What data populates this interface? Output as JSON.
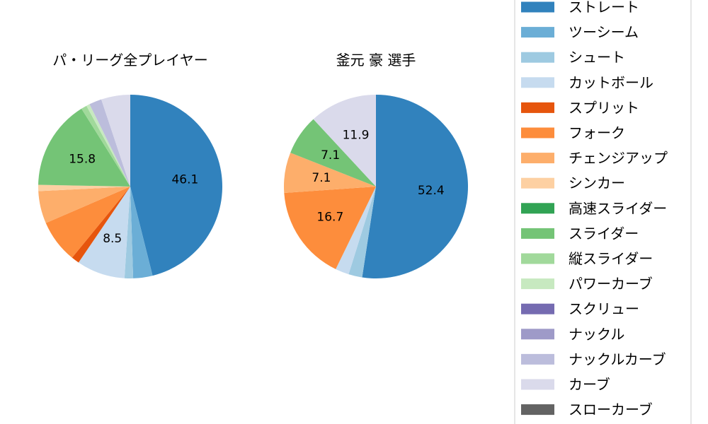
{
  "chart_data": [
    {
      "type": "pie",
      "title": "パ・リーグ全プレイヤー",
      "slices": [
        {
          "label": "ストレート",
          "value": 46.1,
          "color": "#3182bd",
          "show_label": true
        },
        {
          "label": "ツーシーム",
          "value": 3.4,
          "color": "#6baed6",
          "show_label": false
        },
        {
          "label": "シュート",
          "value": 1.5,
          "color": "#9ecae1",
          "show_label": false
        },
        {
          "label": "カットボール",
          "value": 8.5,
          "color": "#c6dbef",
          "show_label": true
        },
        {
          "label": "スプリット",
          "value": 1.4,
          "color": "#e6550d",
          "show_label": false
        },
        {
          "label": "フォーク",
          "value": 7.6,
          "color": "#fd8d3c",
          "show_label": false
        },
        {
          "label": "チェンジアップ",
          "value": 5.7,
          "color": "#fdae6b",
          "show_label": false
        },
        {
          "label": "シンカー",
          "value": 1.1,
          "color": "#fdd0a2",
          "show_label": false
        },
        {
          "label": "スライダー",
          "value": 15.8,
          "color": "#74c476",
          "show_label": true
        },
        {
          "label": "縦スライダー",
          "value": 1.0,
          "color": "#a1d99b",
          "show_label": false
        },
        {
          "label": "パワーカーブ",
          "value": 0.6,
          "color": "#c7e9c0",
          "show_label": false
        },
        {
          "label": "ナックルカーブ",
          "value": 2.2,
          "color": "#bcbddc",
          "show_label": false
        },
        {
          "label": "カーブ",
          "value": 5.1,
          "color": "#dadaeb",
          "show_label": false
        }
      ]
    },
    {
      "type": "pie",
      "title": "釜元 豪  選手",
      "slices": [
        {
          "label": "ストレート",
          "value": 52.4,
          "color": "#3182bd",
          "show_label": true
        },
        {
          "label": "シュート",
          "value": 2.4,
          "color": "#9ecae1",
          "show_label": false
        },
        {
          "label": "カットボール",
          "value": 2.4,
          "color": "#c6dbef",
          "show_label": false
        },
        {
          "label": "フォーク",
          "value": 16.7,
          "color": "#fd8d3c",
          "show_label": true
        },
        {
          "label": "チェンジアップ",
          "value": 7.1,
          "color": "#fdae6b",
          "show_label": true
        },
        {
          "label": "スライダー",
          "value": 7.1,
          "color": "#74c476",
          "show_label": true
        },
        {
          "label": "カーブ",
          "value": 11.9,
          "color": "#dadaeb",
          "show_label": true
        }
      ]
    }
  ],
  "legend": {
    "placement": "right",
    "items": [
      {
        "label": "ストレート",
        "color": "#3182bd"
      },
      {
        "label": "ツーシーム",
        "color": "#6baed6"
      },
      {
        "label": "シュート",
        "color": "#9ecae1"
      },
      {
        "label": "カットボール",
        "color": "#c6dbef"
      },
      {
        "label": "スプリット",
        "color": "#e6550d"
      },
      {
        "label": "フォーク",
        "color": "#fd8d3c"
      },
      {
        "label": "チェンジアップ",
        "color": "#fdae6b"
      },
      {
        "label": "シンカー",
        "color": "#fdd0a2"
      },
      {
        "label": "高速スライダー",
        "color": "#31a354"
      },
      {
        "label": "スライダー",
        "color": "#74c476"
      },
      {
        "label": "縦スライダー",
        "color": "#a1d99b"
      },
      {
        "label": "パワーカーブ",
        "color": "#c7e9c0"
      },
      {
        "label": "スクリュー",
        "color": "#756bb1"
      },
      {
        "label": "ナックル",
        "color": "#9e9ac8"
      },
      {
        "label": "ナックルカーブ",
        "color": "#bcbddc"
      },
      {
        "label": "カーブ",
        "color": "#dadaeb"
      },
      {
        "label": "スローカーブ",
        "color": "#636363"
      }
    ]
  }
}
